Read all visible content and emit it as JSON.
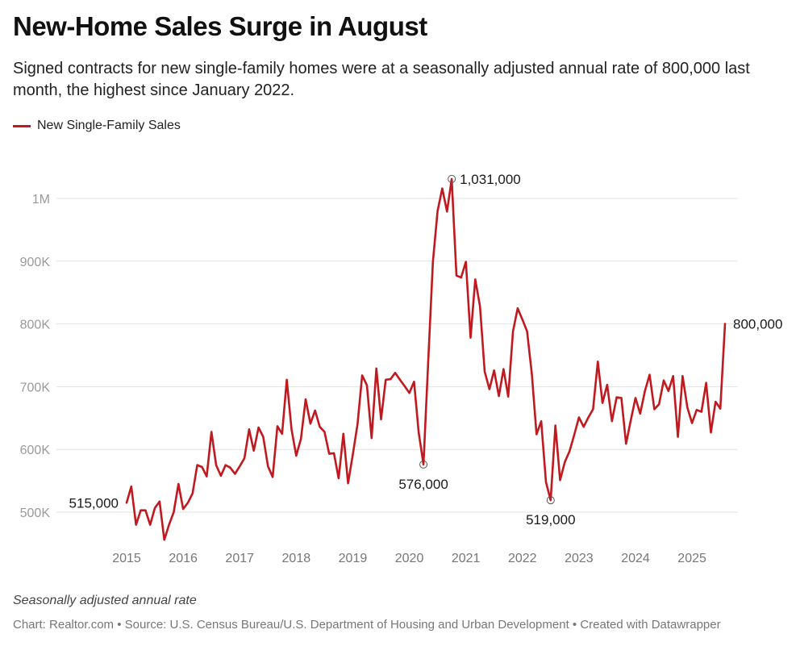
{
  "header": {
    "title": "New-Home Sales Surge in August",
    "subtitle": "Signed contracts for new single-family homes were at a seasonally adjusted annual rate of 800,000 last month, the highest since January 2022."
  },
  "legend": {
    "label": "New Single-Family Sales",
    "color": "#c0191f"
  },
  "footer": {
    "note": "Seasonally adjusted annual rate",
    "source": "Chart: Realtor.com • Source: U.S. Census Bureau/U.S. Department of Housing and Urban Development • Created with Datawrapper"
  },
  "chart_data": {
    "type": "line",
    "title": "New-Home Sales Surge in August",
    "xlabel": "",
    "ylabel": "",
    "start": "2015-01",
    "frequency": "monthly",
    "ylim": [
      500000,
      1000000
    ],
    "yticks": [
      500000,
      600000,
      700000,
      800000,
      900000,
      1000000
    ],
    "ytick_labels": [
      "500K",
      "600K",
      "700K",
      "800K",
      "900K",
      "1M"
    ],
    "xtick_labels": [
      "2015",
      "2016",
      "2017",
      "2018",
      "2019",
      "2020",
      "2021",
      "2022",
      "2023",
      "2024",
      "2025"
    ],
    "grid": "horizontal",
    "legend_position": "top-left",
    "series": [
      {
        "name": "New Single-Family Sales",
        "color": "#c0191f",
        "values": [
          515000,
          541000,
          480000,
          503000,
          503000,
          480000,
          507000,
          517000,
          456000,
          480000,
          500000,
          545000,
          505000,
          515000,
          530000,
          575000,
          572000,
          557000,
          628000,
          575000,
          558000,
          575000,
          571000,
          561000,
          573000,
          586000,
          632000,
          598000,
          635000,
          620000,
          573000,
          556000,
          637000,
          625000,
          711000,
          632000,
          590000,
          617000,
          680000,
          641000,
          662000,
          636000,
          628000,
          593000,
          594000,
          554000,
          625000,
          546000,
          591000,
          640000,
          718000,
          702000,
          618000,
          729000,
          648000,
          711000,
          712000,
          722000,
          711000,
          701000,
          690000,
          708000,
          627000,
          576000,
          738000,
          899000,
          980000,
          1016000,
          979000,
          1031000,
          877000,
          874000,
          899000,
          778000,
          871000,
          828000,
          724000,
          696000,
          726000,
          685000,
          728000,
          684000,
          788000,
          825000,
          807000,
          788000,
          720000,
          624000,
          645000,
          548000,
          519000,
          638000,
          551000,
          580000,
          597000,
          623000,
          651000,
          636000,
          651000,
          664000,
          740000,
          674000,
          703000,
          645000,
          683000,
          682000,
          609000,
          646000,
          682000,
          657000,
          693000,
          719000,
          664000,
          672000,
          710000,
          693000,
          717000,
          620000,
          717000,
          667000,
          642000,
          663000,
          660000,
          706000,
          627000,
          676000,
          665000,
          800000
        ]
      }
    ],
    "annotations": [
      {
        "index": 0,
        "label": "515,000",
        "marker": false,
        "position": "left"
      },
      {
        "index": 63,
        "label": "576,000",
        "marker": true,
        "position": "below"
      },
      {
        "index": 69,
        "label": "1,031,000",
        "marker": true,
        "position": "right"
      },
      {
        "index": 90,
        "label": "519,000",
        "marker": true,
        "position": "below"
      },
      {
        "index": 127,
        "label": "800,000",
        "marker": false,
        "position": "right"
      }
    ]
  }
}
